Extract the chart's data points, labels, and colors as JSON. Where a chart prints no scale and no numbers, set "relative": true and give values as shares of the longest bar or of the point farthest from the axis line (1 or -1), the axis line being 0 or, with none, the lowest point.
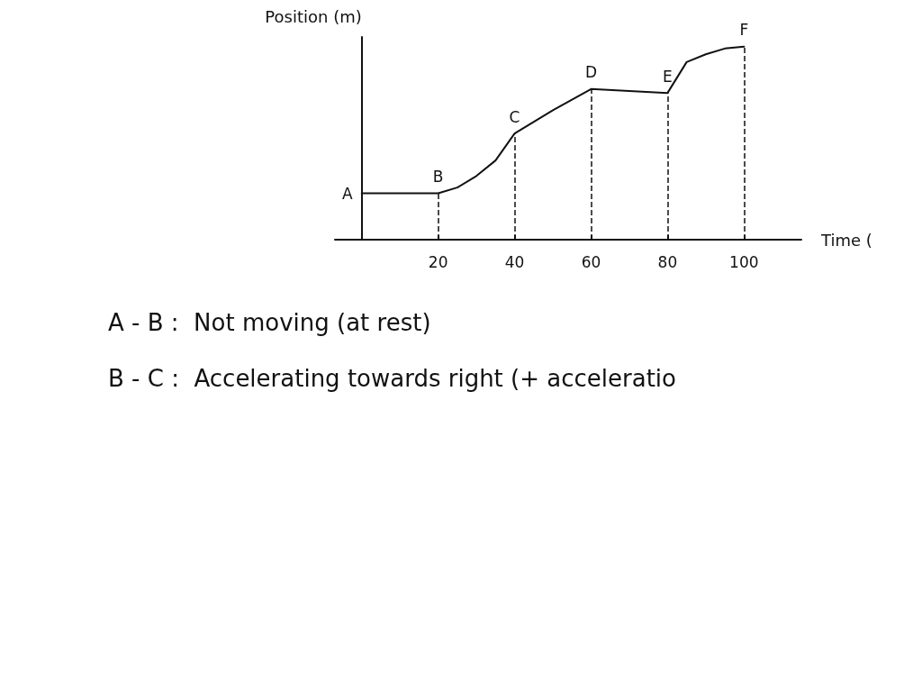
{
  "chart_data": {
    "type": "line",
    "relative": true,
    "xlabel": "Time (",
    "ylabel": "Position (m)",
    "x": [
      0,
      20,
      25,
      30,
      35,
      40,
      50,
      60,
      70,
      80,
      85,
      90,
      95,
      100
    ],
    "values": [
      0.24,
      0.24,
      0.27,
      0.33,
      0.41,
      0.55,
      0.67,
      0.78,
      0.77,
      0.76,
      0.92,
      0.96,
      0.99,
      1
    ],
    "color": "#111111",
    "marker": "none",
    "line_style": "solid",
    "grid": false,
    "xlim": [
      -7,
      115
    ],
    "xticks": [
      20,
      40,
      60,
      80,
      100
    ],
    "ref_lines": [
      {
        "axis": "x",
        "value": 20,
        "label": null,
        "line_style": "dashed"
      },
      {
        "axis": "x",
        "value": 40,
        "label": null,
        "line_style": "dashed"
      },
      {
        "axis": "x",
        "value": 60,
        "label": null,
        "line_style": "dashed"
      },
      {
        "axis": "x",
        "value": 80,
        "label": null,
        "line_style": "dashed"
      },
      {
        "axis": "x",
        "value": 100,
        "label": null,
        "line_style": "dashed"
      }
    ],
    "annotations": [
      {
        "text": "A",
        "x": 0,
        "y": 0.24
      },
      {
        "text": "B",
        "x": 20,
        "y": 0.24
      },
      {
        "text": "C",
        "x": 40,
        "y": 0.55
      },
      {
        "text": "D",
        "x": 60,
        "y": 0.78
      },
      {
        "text": "E",
        "x": 80,
        "y": 0.76
      },
      {
        "text": "F",
        "x": 100,
        "y": 1
      },
      "A - B :  Not moving (at rest)",
      "B - C :  Accelerating towards right (+ acceleratio"
    ]
  }
}
